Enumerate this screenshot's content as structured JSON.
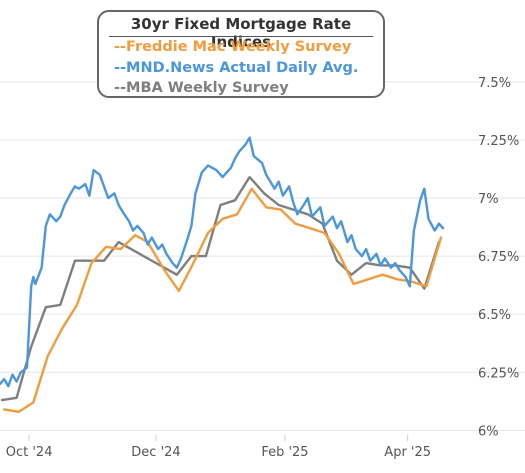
{
  "chart_data": {
    "type": "line",
    "title": "30yr Fixed Mortgage Rate Indices",
    "y_tick_labels": [
      "6%",
      "6.25%",
      "6.5%",
      "6.75%",
      "7%",
      "7.25%",
      "7.5%"
    ],
    "y_ticks": [
      6.0,
      6.25,
      6.5,
      6.75,
      7.0,
      7.25,
      7.5
    ],
    "ylim": [
      5.98,
      7.68
    ],
    "x_tick_labels": [
      "Oct '24",
      "Dec '24",
      "Feb '25",
      "Apr '25"
    ],
    "x_ticks": [
      "2024-10-01",
      "2024-12-01",
      "2025-02-01",
      "2025-04-01"
    ],
    "xlim": [
      "2024-09-17",
      "2025-04-30"
    ],
    "grid": "horizontal",
    "legend_position": "top-left",
    "series": [
      {
        "name": "--Freddie Mac Weekly Survey",
        "color": "#f39c3d",
        "x": [
          "2024-09-19",
          "2024-09-26",
          "2024-10-03",
          "2024-10-10",
          "2024-10-17",
          "2024-10-24",
          "2024-10-31",
          "2024-11-07",
          "2024-11-14",
          "2024-11-21",
          "2024-11-27",
          "2024-12-05",
          "2024-12-12",
          "2024-12-19",
          "2024-12-26",
          "2025-01-02",
          "2025-01-09",
          "2025-01-16",
          "2025-01-23",
          "2025-01-30",
          "2025-02-06",
          "2025-02-13",
          "2025-02-20",
          "2025-02-27",
          "2025-03-06",
          "2025-03-13",
          "2025-03-20",
          "2025-03-27",
          "2025-04-03",
          "2025-04-10",
          "2025-04-17"
        ],
        "y": [
          6.09,
          6.08,
          6.12,
          6.32,
          6.44,
          6.54,
          6.72,
          6.79,
          6.78,
          6.84,
          6.81,
          6.69,
          6.6,
          6.72,
          6.85,
          6.91,
          6.93,
          7.04,
          6.96,
          6.95,
          6.89,
          6.87,
          6.85,
          6.76,
          6.63,
          6.65,
          6.67,
          6.65,
          6.64,
          6.62,
          6.83
        ]
      },
      {
        "name": "--MND.News Actual Daily Avg.",
        "color": "#4a97e0",
        "x": [
          "2024-09-17",
          "2024-09-19",
          "2024-09-21",
          "2024-09-23",
          "2024-09-25",
          "2024-09-27",
          "2024-09-30",
          "2024-10-02",
          "2024-10-03",
          "2024-10-04",
          "2024-10-07",
          "2024-10-09",
          "2024-10-11",
          "2024-10-14",
          "2024-10-16",
          "2024-10-18",
          "2024-10-21",
          "2024-10-23",
          "2024-10-25",
          "2024-10-28",
          "2024-10-30",
          "2024-11-01",
          "2024-11-04",
          "2024-11-06",
          "2024-11-08",
          "2024-11-11",
          "2024-11-13",
          "2024-11-15",
          "2024-11-18",
          "2024-11-20",
          "2024-11-22",
          "2024-11-25",
          "2024-11-27",
          "2024-11-29",
          "2024-12-02",
          "2024-12-04",
          "2024-12-06",
          "2024-12-09",
          "2024-12-11",
          "2024-12-13",
          "2024-12-16",
          "2024-12-18",
          "2024-12-20",
          "2024-12-23",
          "2024-12-26",
          "2024-12-30",
          "2025-01-02",
          "2025-01-06",
          "2025-01-08",
          "2025-01-10",
          "2025-01-13",
          "2025-01-15",
          "2025-01-17",
          "2025-01-21",
          "2025-01-23",
          "2025-01-27",
          "2025-01-29",
          "2025-01-31",
          "2025-02-03",
          "2025-02-05",
          "2025-02-07",
          "2025-02-10",
          "2025-02-12",
          "2025-02-14",
          "2025-02-18",
          "2025-02-20",
          "2025-02-24",
          "2025-02-26",
          "2025-02-28",
          "2025-03-03",
          "2025-03-05",
          "2025-03-07",
          "2025-03-10",
          "2025-03-12",
          "2025-03-14",
          "2025-03-17",
          "2025-03-19",
          "2025-03-21",
          "2025-03-24",
          "2025-03-26",
          "2025-03-28",
          "2025-03-31",
          "2025-04-02",
          "2025-04-04",
          "2025-04-07",
          "2025-04-09",
          "2025-04-11",
          "2025-04-14",
          "2025-04-16",
          "2025-04-18"
        ],
        "y": [
          6.2,
          6.22,
          6.19,
          6.24,
          6.21,
          6.25,
          6.27,
          6.62,
          6.66,
          6.63,
          6.7,
          6.88,
          6.93,
          6.9,
          6.92,
          6.97,
          7.02,
          7.05,
          7.04,
          7.06,
          7.01,
          7.12,
          7.1,
          7.05,
          7.0,
          7.02,
          6.97,
          6.94,
          6.9,
          6.86,
          6.88,
          6.85,
          6.8,
          6.83,
          6.78,
          6.8,
          6.76,
          6.72,
          6.7,
          6.74,
          6.82,
          6.88,
          7.02,
          7.11,
          7.14,
          7.12,
          7.09,
          7.13,
          7.17,
          7.2,
          7.23,
          7.26,
          7.18,
          7.15,
          7.1,
          7.04,
          7.07,
          7.01,
          7.05,
          6.98,
          6.93,
          6.97,
          7.0,
          6.92,
          6.96,
          6.88,
          6.92,
          6.87,
          6.9,
          6.81,
          6.84,
          6.78,
          6.75,
          6.78,
          6.73,
          6.76,
          6.71,
          6.74,
          6.7,
          6.72,
          6.69,
          6.66,
          6.62,
          6.86,
          6.99,
          7.04,
          6.91,
          6.86,
          6.89,
          6.87
        ]
      },
      {
        "name": "--MBA Weekly Survey",
        "color": "#7f7f7f",
        "x": [
          "2024-09-18",
          "2024-09-25",
          "2024-10-02",
          "2024-10-09",
          "2024-10-16",
          "2024-10-23",
          "2024-10-30",
          "2024-11-06",
          "2024-11-13",
          "2024-12-11",
          "2024-12-18",
          "2024-12-25",
          "2025-01-01",
          "2025-01-08",
          "2025-01-15",
          "2025-01-22",
          "2025-01-29",
          "2025-02-05",
          "2025-02-12",
          "2025-02-19",
          "2025-02-26",
          "2025-03-05",
          "2025-03-12",
          "2025-03-19",
          "2025-03-26",
          "2025-04-02",
          "2025-04-09",
          "2025-04-16"
        ],
        "y": [
          6.13,
          6.14,
          6.36,
          6.53,
          6.54,
          6.73,
          6.73,
          6.73,
          6.81,
          6.67,
          6.75,
          6.75,
          6.97,
          6.99,
          7.09,
          7.02,
          6.97,
          6.95,
          6.93,
          6.89,
          6.73,
          6.67,
          6.72,
          6.71,
          6.71,
          6.7,
          6.61,
          6.81
        ]
      }
    ]
  }
}
